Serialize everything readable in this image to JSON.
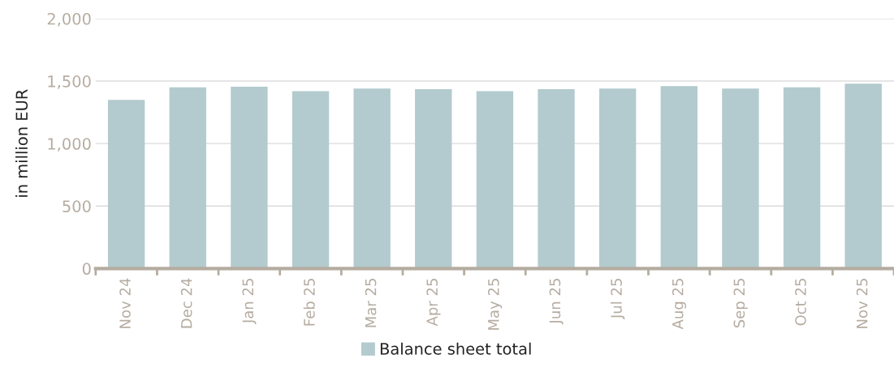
{
  "chart_data": {
    "type": "bar",
    "ylabel": "in million EUR",
    "categories": [
      "Nov 24",
      "Dec 24",
      "Jan 25",
      "Feb 25",
      "Mar 25",
      "Apr 25",
      "May 25",
      "Jun 25",
      "Jul 25",
      "Aug 25",
      "Sep 25",
      "Oct 25",
      "Nov 25"
    ],
    "series": [
      {
        "name": "Balance sheet total",
        "color": "#b3cbce",
        "values": [
          1350,
          1450,
          1455,
          1420,
          1440,
          1435,
          1420,
          1435,
          1440,
          1460,
          1440,
          1450,
          1480
        ]
      }
    ],
    "ylim": [
      0,
      2000
    ],
    "yticks": [
      {
        "value": 0,
        "label": "0"
      },
      {
        "value": 500,
        "label": "500"
      },
      {
        "value": 1000,
        "label": "1,000"
      },
      {
        "value": 1500,
        "label": "1,500"
      },
      {
        "value": 2000,
        "label": "2,000"
      }
    ],
    "grid": "y",
    "legend": "bottom"
  }
}
